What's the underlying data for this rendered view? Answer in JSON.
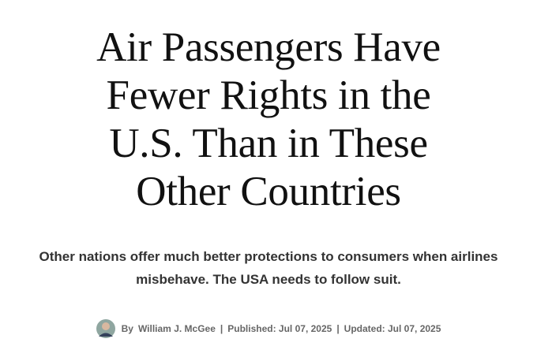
{
  "article": {
    "title_lines": [
      "Air Passengers Have",
      "Fewer Rights in the",
      "U.S. Than in These",
      "Other Countries"
    ],
    "subtitle": "Other nations offer much better protections to consumers when airlines misbehave. The USA needs to follow suit.",
    "byline": {
      "by": "By",
      "author": "William J. McGee",
      "separator": "|",
      "published": "Published: Jul 07, 2025",
      "updated": "Updated: Jul 07, 2025"
    }
  }
}
